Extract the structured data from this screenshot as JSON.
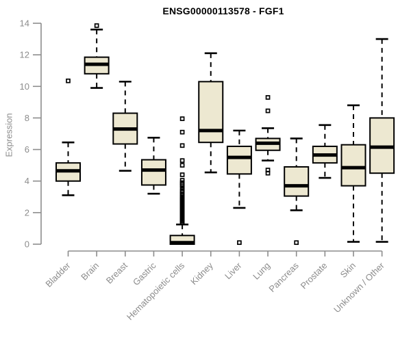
{
  "page": {
    "background": "#ffffff"
  },
  "chart_data": {
    "type": "boxplot",
    "title": "ENSG00000113578 - FGF1",
    "xlabel": "",
    "ylabel": "Expression",
    "ylim": [
      0,
      14
    ],
    "yticks": [
      0,
      2,
      4,
      6,
      8,
      10,
      12,
      14
    ],
    "grid": false,
    "legend": "none",
    "colors": {
      "box_fill": "#EDE8D1",
      "box_stroke": "#000000",
      "median": "#000000",
      "whisker": "#000000",
      "axis": "#8c8c8c",
      "tick_label": "#8c8c8c",
      "title": "#000000",
      "background": "#ffffff"
    },
    "categories": [
      "Bladder",
      "Brain",
      "Breast",
      "Gastric",
      "Hematopoietic cells",
      "Kidney",
      "Liver",
      "Lung",
      "Pancreas",
      "Prostate",
      "Skin",
      "Unknown / Other"
    ],
    "series": [
      {
        "category": "Bladder",
        "whisker_low": 3.1,
        "q1": 4.0,
        "median": 4.65,
        "q3": 5.15,
        "whisker_high": 6.45,
        "outliers": [
          10.35
        ]
      },
      {
        "category": "Brain",
        "whisker_low": 9.9,
        "q1": 10.8,
        "median": 11.4,
        "q3": 11.85,
        "whisker_high": 13.6,
        "outliers": [
          13.85
        ]
      },
      {
        "category": "Breast",
        "whisker_low": 4.65,
        "q1": 6.35,
        "median": 7.3,
        "q3": 8.3,
        "whisker_high": 10.3,
        "outliers": []
      },
      {
        "category": "Gastric",
        "whisker_low": 3.2,
        "q1": 3.75,
        "median": 4.7,
        "q3": 5.35,
        "whisker_high": 6.75,
        "outliers": []
      },
      {
        "category": "Hematopoietic cells",
        "whisker_low": 0.0,
        "q1": 0.0,
        "median": 0.1,
        "q3": 0.55,
        "whisker_high": 1.25,
        "outliers": [
          7.95,
          7.1,
          6.25,
          5.3,
          5.0,
          4.4,
          4.05,
          3.9,
          3.8,
          3.7,
          3.55,
          3.4,
          3.3,
          3.2,
          3.1,
          3.0,
          2.92,
          2.84,
          2.76,
          2.68,
          2.6,
          2.52,
          2.44,
          2.36,
          2.28,
          2.2,
          2.12,
          2.04,
          1.96,
          1.88,
          1.8,
          1.72,
          1.64,
          1.56,
          1.48,
          1.4,
          1.35
        ]
      },
      {
        "category": "Kidney",
        "whisker_low": 4.55,
        "q1": 6.45,
        "median": 7.2,
        "q3": 10.3,
        "whisker_high": 12.1,
        "outliers": []
      },
      {
        "category": "Liver",
        "whisker_low": 2.3,
        "q1": 4.45,
        "median": 5.5,
        "q3": 6.2,
        "whisker_high": 7.2,
        "outliers": [
          0.1
        ]
      },
      {
        "category": "Lung",
        "whisker_low": 5.3,
        "q1": 5.95,
        "median": 6.4,
        "q3": 6.7,
        "whisker_high": 7.35,
        "outliers": [
          9.3,
          8.45,
          4.7,
          4.5
        ]
      },
      {
        "category": "Pancreas",
        "whisker_low": 2.15,
        "q1": 3.05,
        "median": 3.7,
        "q3": 4.9,
        "whisker_high": 6.7,
        "outliers": [
          0.1
        ]
      },
      {
        "category": "Prostate",
        "whisker_low": 4.2,
        "q1": 5.15,
        "median": 5.65,
        "q3": 6.2,
        "whisker_high": 7.55,
        "outliers": []
      },
      {
        "category": "Skin",
        "whisker_low": 0.15,
        "q1": 3.7,
        "median": 4.85,
        "q3": 6.3,
        "whisker_high": 8.8,
        "outliers": []
      },
      {
        "category": "Unknown / Other",
        "whisker_low": 0.15,
        "q1": 4.5,
        "median": 6.15,
        "q3": 8.0,
        "whisker_high": 13.0,
        "outliers": []
      }
    ]
  }
}
